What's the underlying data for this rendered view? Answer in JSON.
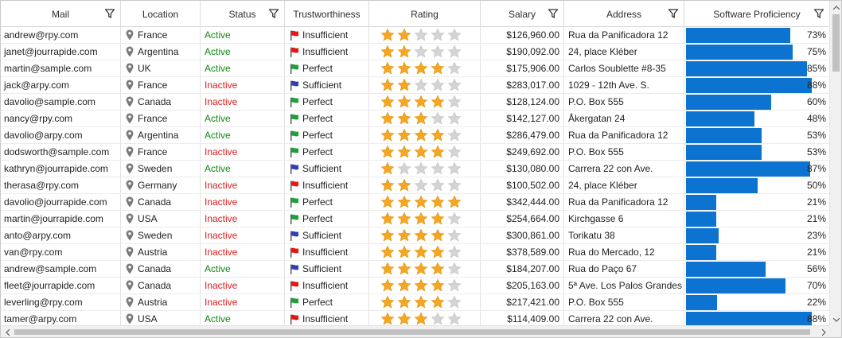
{
  "colors": {
    "accent": "#0c74d0",
    "active": "#0f8a0f",
    "inactive": "#e01c1c",
    "flag_red": "#e81515",
    "flag_green": "#1f9f3a",
    "flag_blue": "#2f3fb8",
    "star_filled": "#f5a623",
    "star_empty": "#d4d4d4"
  },
  "columns": [
    {
      "key": "mail",
      "label": "Mail",
      "filter": true
    },
    {
      "key": "location",
      "label": "Location",
      "filter": false
    },
    {
      "key": "status",
      "label": "Status",
      "filter": true
    },
    {
      "key": "trust",
      "label": "Trustworthiness",
      "filter": false
    },
    {
      "key": "rating",
      "label": "Rating",
      "filter": false
    },
    {
      "key": "salary",
      "label": "Salary",
      "filter": true
    },
    {
      "key": "address",
      "label": "Address",
      "filter": true
    },
    {
      "key": "proficiency",
      "label": "Software Proficiency",
      "filter": true
    }
  ],
  "rows": [
    {
      "mail": "andrew@rpy.com",
      "location": "France",
      "status": "Active",
      "trust": "Insufficient",
      "rating": 2,
      "salary": "$126,960.00",
      "address": "Rua da Panificadora 12",
      "proficiency": 73,
      "proficiency_label": "73%"
    },
    {
      "mail": "janet@jourrapide.com",
      "location": "Argentina",
      "status": "Active",
      "trust": "Insufficient",
      "rating": 2,
      "salary": "$190,092.00",
      "address": "24, place Kléber",
      "proficiency": 75,
      "proficiency_label": "75%"
    },
    {
      "mail": "martin@sample.com",
      "location": "UK",
      "status": "Active",
      "trust": "Perfect",
      "rating": 4,
      "salary": "$175,906.00",
      "address": " Carlos Soublette #8-35",
      "proficiency": 85,
      "proficiency_label": "85%"
    },
    {
      "mail": "jack@arpy.com",
      "location": "France",
      "status": "Inactive",
      "trust": "Sufficient",
      "rating": 2,
      "salary": "$283,017.00",
      "address": "1029 - 12th Ave. S.",
      "proficiency": 88,
      "proficiency_label": "88%"
    },
    {
      "mail": "davolio@sample.com",
      "location": "Canada",
      "status": "Inactive",
      "trust": "Perfect",
      "rating": 4,
      "salary": "$128,124.00",
      "address": "P.O. Box 555",
      "proficiency": 60,
      "proficiency_label": "60%"
    },
    {
      "mail": "nancy@rpy.com",
      "location": "France",
      "status": "Active",
      "trust": "Perfect",
      "rating": 3,
      "salary": "$142,127.00",
      "address": "Åkergatan 24",
      "proficiency": 48,
      "proficiency_label": "48%"
    },
    {
      "mail": "davolio@arpy.com",
      "location": "Argentina",
      "status": "Active",
      "trust": "Perfect",
      "rating": 4,
      "salary": "$286,479.00",
      "address": "Rua da Panificadora 12",
      "proficiency": 53,
      "proficiency_label": "53%"
    },
    {
      "mail": "dodsworth@sample.com",
      "location": "France",
      "status": "Inactive",
      "trust": "Perfect",
      "rating": 4,
      "salary": "$249,692.00",
      "address": "P.O. Box 555",
      "proficiency": 53,
      "proficiency_label": "53%"
    },
    {
      "mail": "kathryn@jourrapide.com",
      "location": "Sweden",
      "status": "Active",
      "trust": "Sufficient",
      "rating": 1,
      "salary": "$130,080.00",
      "address": "Carrera 22 con Ave.",
      "proficiency": 87,
      "proficiency_label": "87%"
    },
    {
      "mail": "therasa@rpy.com",
      "location": "Germany",
      "status": "Inactive",
      "trust": "Insufficient",
      "rating": 2,
      "salary": "$100,502.00",
      "address": "24, place Kléber",
      "proficiency": 50,
      "proficiency_label": "50%"
    },
    {
      "mail": "davolio@jourrapide.com",
      "location": "Canada",
      "status": "Inactive",
      "trust": "Perfect",
      "rating": 5,
      "salary": "$342,444.00",
      "address": "Rua da Panificadora 12",
      "proficiency": 21,
      "proficiency_label": "21%"
    },
    {
      "mail": "martin@jourrapide.com",
      "location": "USA",
      "status": "Inactive",
      "trust": "Perfect",
      "rating": 4,
      "salary": "$254,664.00",
      "address": "Kirchgasse 6",
      "proficiency": 21,
      "proficiency_label": "21%"
    },
    {
      "mail": "anto@arpy.com",
      "location": "Sweden",
      "status": "Inactive",
      "trust": "Sufficient",
      "rating": 4,
      "salary": "$300,861.00",
      "address": "Torikatu 38",
      "proficiency": 23,
      "proficiency_label": "23%"
    },
    {
      "mail": "van@rpy.com",
      "location": "Austria",
      "status": "Inactive",
      "trust": "Insufficient",
      "rating": 4,
      "salary": "$378,589.00",
      "address": "Rua do Mercado, 12",
      "proficiency": 21,
      "proficiency_label": "21%"
    },
    {
      "mail": "andrew@sample.com",
      "location": "Canada",
      "status": "Active",
      "trust": "Sufficient",
      "rating": 4,
      "salary": "$184,207.00",
      "address": " Rua do Paço 67",
      "proficiency": 56,
      "proficiency_label": "56%"
    },
    {
      "mail": "fleet@jourrapide.com",
      "location": "Canada",
      "status": "Inactive",
      "trust": "Insufficient",
      "rating": 4,
      "salary": "$205,163.00",
      "address": "5ª Ave. Los Palos Grandes",
      "proficiency": 70,
      "proficiency_label": "70%"
    },
    {
      "mail": "leverling@rpy.com",
      "location": "Austria",
      "status": "Inactive",
      "trust": "Perfect",
      "rating": 4,
      "salary": "$217,421.00",
      "address": "P.O. Box 555",
      "proficiency": 22,
      "proficiency_label": "22%"
    },
    {
      "mail": "tamer@arpy.com",
      "location": "USA",
      "status": "Active",
      "trust": "Insufficient",
      "rating": 3,
      "salary": "$114,409.00",
      "address": "Carrera 22 con Ave.",
      "proficiency": 88,
      "proficiency_label": "88%"
    }
  ]
}
